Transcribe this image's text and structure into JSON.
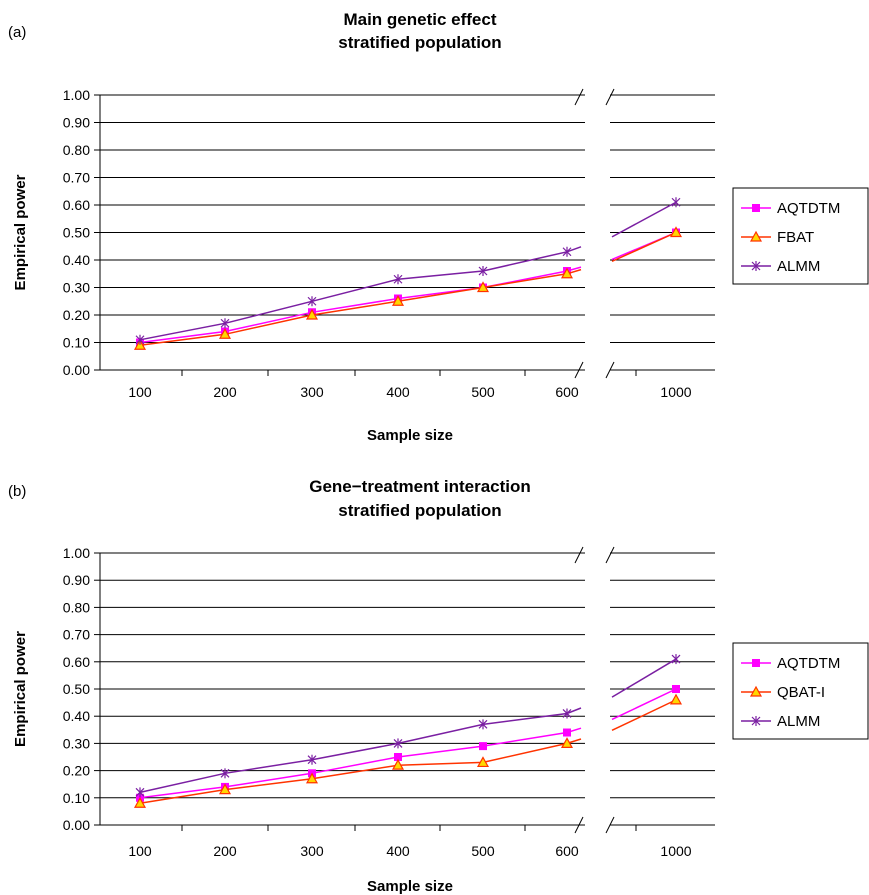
{
  "chart_data": [
    {
      "type": "line",
      "panel_label": "(a)",
      "title": "Main genetic effect",
      "subtitle": "stratified population",
      "xlabel": "Sample size",
      "ylabel": "Empirical power",
      "ylim": [
        0,
        1
      ],
      "yticks": [
        "0.00",
        "0.10",
        "0.20",
        "0.30",
        "0.40",
        "0.50",
        "0.60",
        "0.70",
        "0.80",
        "0.90",
        "1.00"
      ],
      "categories": [
        "100",
        "200",
        "300",
        "400",
        "500",
        "600",
        "1000"
      ],
      "axis_break_between": [
        "600",
        "1000"
      ],
      "grid": true,
      "legend_position": "right",
      "series": [
        {
          "name": "AQTDTM",
          "color": "#ff00ff",
          "marker": "square",
          "values": [
            0.1,
            0.14,
            0.21,
            0.26,
            0.3,
            0.36,
            0.5
          ]
        },
        {
          "name": "FBAT",
          "color": "#ff3300",
          "marker": "triangle",
          "values": [
            0.09,
            0.13,
            0.2,
            0.25,
            0.3,
            0.35,
            0.5
          ]
        },
        {
          "name": "ALMM",
          "color": "#7a1fa2",
          "marker": "star",
          "values": [
            0.11,
            0.17,
            0.25,
            0.33,
            0.36,
            0.43,
            0.61
          ]
        }
      ]
    },
    {
      "type": "line",
      "panel_label": "(b)",
      "title": "Gene−treatment interaction",
      "subtitle": "stratified population",
      "xlabel": "Sample size",
      "ylabel": "Empirical power",
      "ylim": [
        0,
        1
      ],
      "yticks": [
        "0.00",
        "0.10",
        "0.20",
        "0.30",
        "0.40",
        "0.50",
        "0.60",
        "0.70",
        "0.80",
        "0.90",
        "1.00"
      ],
      "categories": [
        "100",
        "200",
        "300",
        "400",
        "500",
        "600",
        "1000"
      ],
      "axis_break_between": [
        "600",
        "1000"
      ],
      "grid": true,
      "legend_position": "right",
      "series": [
        {
          "name": "AQTDTM",
          "color": "#ff00ff",
          "marker": "square",
          "values": [
            0.1,
            0.14,
            0.19,
            0.25,
            0.29,
            0.34,
            0.5
          ]
        },
        {
          "name": "QBAT-I",
          "color": "#ff3300",
          "marker": "triangle",
          "values": [
            0.08,
            0.13,
            0.17,
            0.22,
            0.23,
            0.3,
            0.46
          ]
        },
        {
          "name": "ALMM",
          "color": "#7a1fa2",
          "marker": "star",
          "values": [
            0.12,
            0.19,
            0.24,
            0.3,
            0.37,
            0.41,
            0.61
          ]
        }
      ]
    }
  ]
}
